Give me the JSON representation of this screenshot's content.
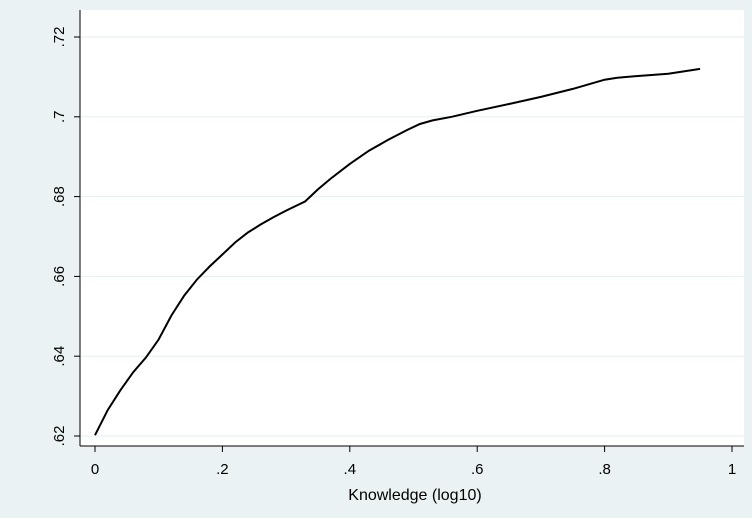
{
  "chart_data": {
    "type": "line",
    "title": "",
    "xlabel": "Knowledge (log10)",
    "ylabel": "",
    "xlim": [
      0,
      1
    ],
    "ylim": [
      0.62,
      0.72
    ],
    "x_ticks": [
      0,
      0.2,
      0.4,
      0.6,
      0.8,
      1
    ],
    "x_tick_labels": [
      "0",
      ".2",
      ".4",
      ".6",
      ".8",
      "1"
    ],
    "y_ticks": [
      0.62,
      0.64,
      0.66,
      0.68,
      0.7,
      0.72
    ],
    "y_tick_labels": [
      ".62",
      ".64",
      ".66",
      ".68",
      ".7",
      ".72"
    ],
    "grid": "horizontal",
    "colors": {
      "background": "#eaf2f3",
      "plot_area": "#ffffff",
      "line": "#000000",
      "grid": "#e6eef0"
    },
    "series": [
      {
        "x": [
          0,
          0.02,
          0.04,
          0.06,
          0.08,
          0.1,
          0.12,
          0.14,
          0.16,
          0.18,
          0.2,
          0.22,
          0.24,
          0.26,
          0.28,
          0.3,
          0.33,
          0.35,
          0.37,
          0.4,
          0.43,
          0.46,
          0.49,
          0.51,
          0.53,
          0.56,
          0.6,
          0.65,
          0.7,
          0.75,
          0.8,
          0.82,
          0.85,
          0.9,
          0.95
        ],
        "y": [
          0.6202,
          0.6265,
          0.6315,
          0.636,
          0.6397,
          0.6442,
          0.6502,
          0.6552,
          0.6592,
          0.6625,
          0.6655,
          0.6685,
          0.671,
          0.673,
          0.6748,
          0.6765,
          0.6788,
          0.6818,
          0.6845,
          0.6882,
          0.6915,
          0.6942,
          0.6967,
          0.6982,
          0.6991,
          0.7,
          0.7015,
          0.7032,
          0.705,
          0.707,
          0.7093,
          0.7098,
          0.7102,
          0.7108,
          0.712
        ]
      }
    ]
  }
}
